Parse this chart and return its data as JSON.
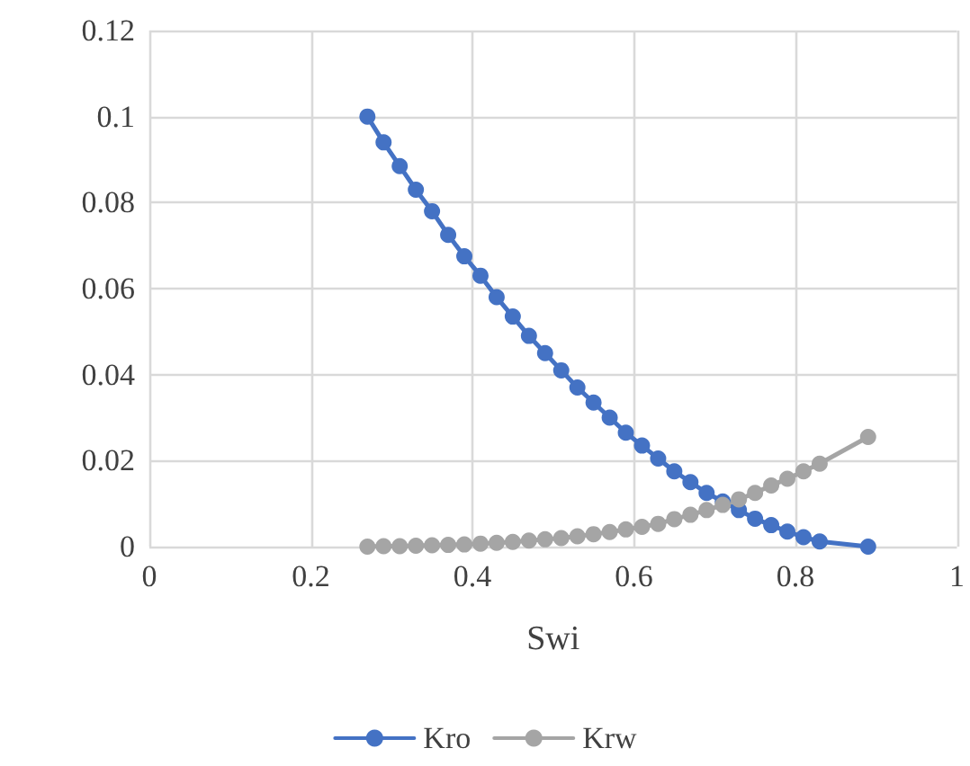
{
  "chart_data": {
    "type": "line",
    "xlabel": "Swi",
    "x": [
      0.27,
      0.29,
      0.31,
      0.33,
      0.35,
      0.37,
      0.39,
      0.41,
      0.43,
      0.45,
      0.47,
      0.49,
      0.51,
      0.53,
      0.55,
      0.57,
      0.59,
      0.61,
      0.63,
      0.65,
      0.67,
      0.69,
      0.71,
      0.73,
      0.75,
      0.77,
      0.79,
      0.81,
      0.83,
      0.89
    ],
    "series": [
      {
        "name": "Kro",
        "color": "#4472c4",
        "values": [
          0.1,
          0.094,
          0.0885,
          0.083,
          0.078,
          0.0725,
          0.0675,
          0.063,
          0.058,
          0.0535,
          0.049,
          0.045,
          0.041,
          0.037,
          0.0335,
          0.03,
          0.0265,
          0.0235,
          0.0205,
          0.0175,
          0.015,
          0.0125,
          0.0105,
          0.0085,
          0.0065,
          0.005,
          0.0035,
          0.0022,
          0.0012,
          0
        ]
      },
      {
        "name": "Krw",
        "color": "#a5a5a5",
        "values": [
          0,
          0.0001,
          0.0001,
          0.0002,
          0.0003,
          0.0004,
          0.0005,
          0.0007,
          0.0009,
          0.0011,
          0.0014,
          0.0017,
          0.002,
          0.0024,
          0.0029,
          0.0034,
          0.004,
          0.0046,
          0.0053,
          0.0064,
          0.0074,
          0.0085,
          0.0097,
          0.011,
          0.0125,
          0.0142,
          0.0158,
          0.0175,
          0.0193,
          0.0255
        ]
      }
    ],
    "xlim": [
      0,
      1
    ],
    "xticks": [
      0,
      0.2,
      0.4,
      0.6,
      0.8,
      1
    ],
    "ylim": [
      0,
      0.12
    ],
    "yticks": [
      0,
      0.02,
      0.04,
      0.06,
      0.08,
      0.1,
      0.12
    ],
    "grid": true,
    "legend": "bottom",
    "marker": "circle",
    "line_style": "solid"
  }
}
